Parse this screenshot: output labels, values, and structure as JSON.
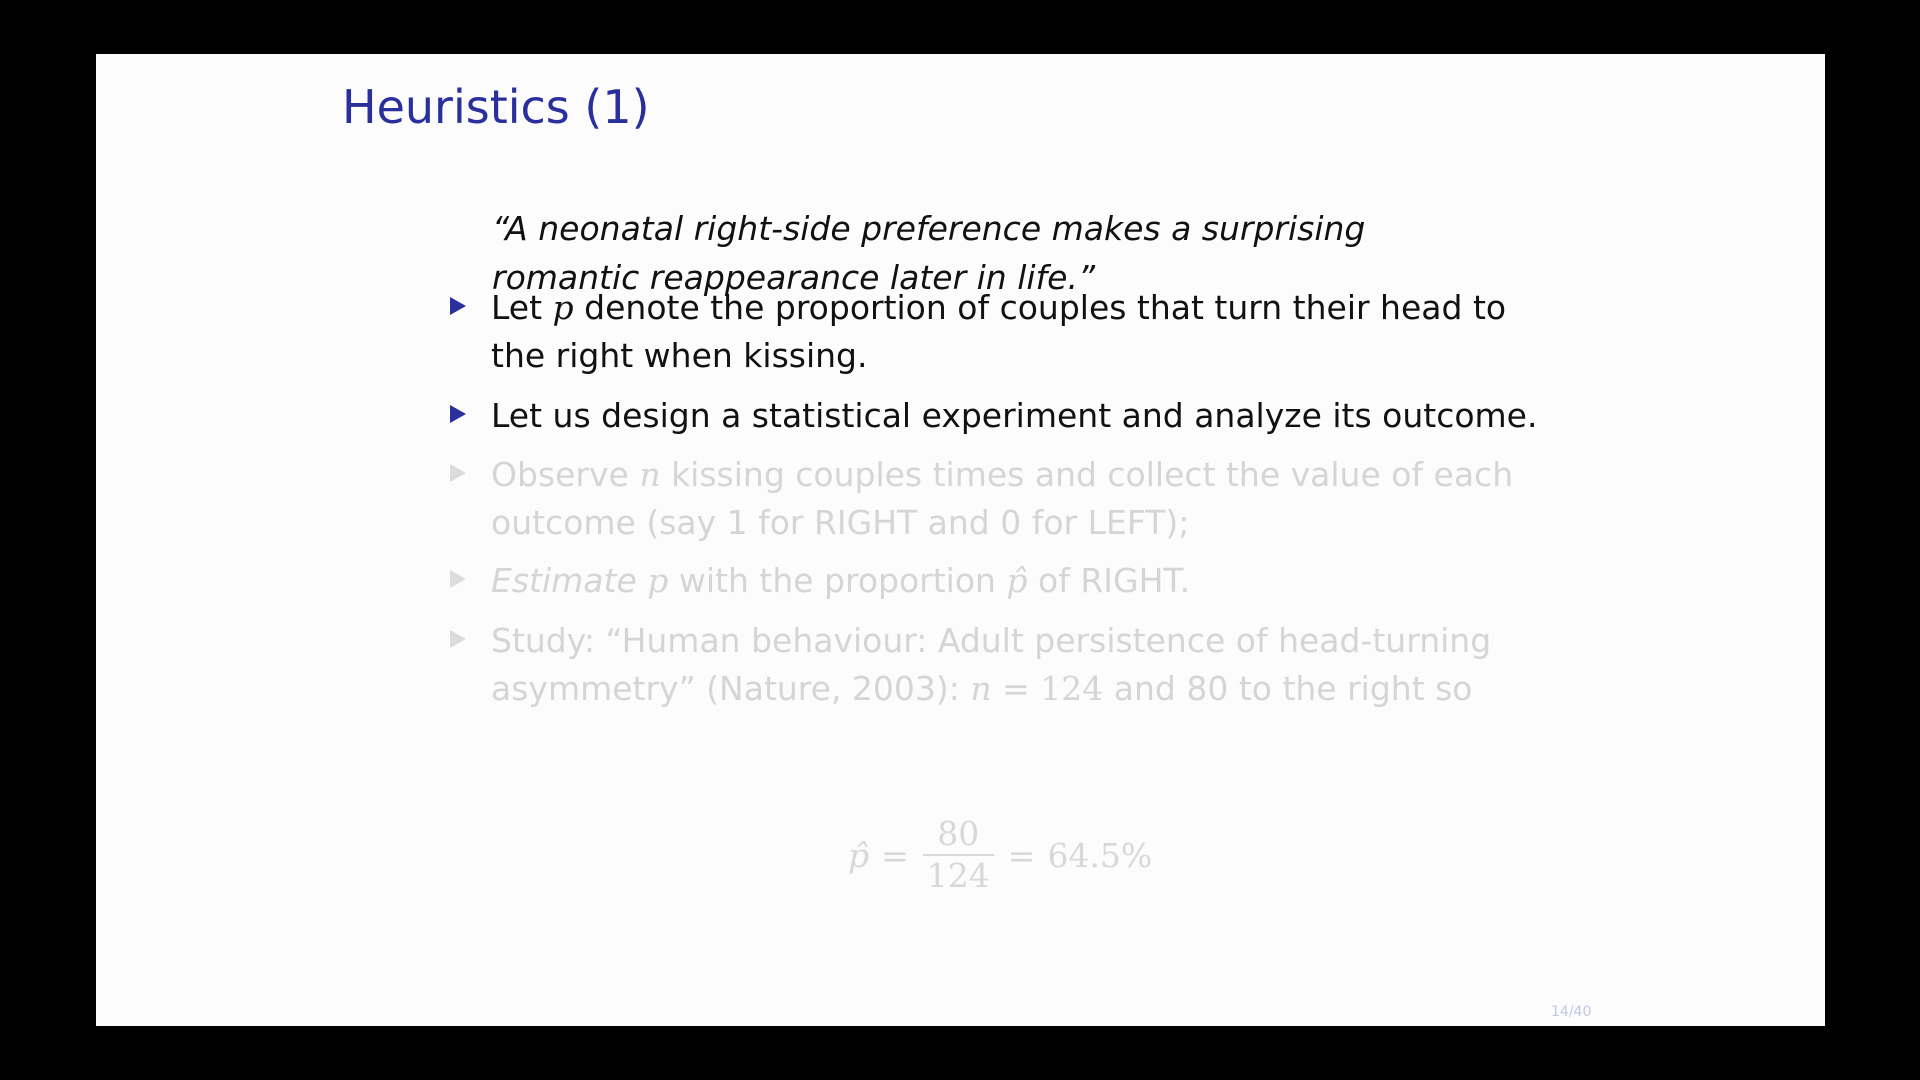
{
  "slide": {
    "title": "Heuristics (1)",
    "quote": {
      "line1": "“A neonatal right-side preference makes a surprising",
      "line2": "romantic reappearance later in life.”"
    },
    "items": [
      {
        "l1_a": "Let ",
        "l1_var": "p",
        "l1_b": " denote the proportion of couples that turn their head to",
        "l2": "the right when kissing."
      },
      {
        "l1": "Let us design a statistical experiment and analyze its outcome."
      },
      {
        "l1_a": "Observe ",
        "l1_var": "n",
        "l1_b": " kissing couples times and collect the value of each",
        "l2": "outcome (say 1 for RIGHT and 0 for LEFT);"
      },
      {
        "l1_em": "Estimate",
        "l1_var": "p",
        "l1_mid": " with the proportion ",
        "l1_var2": "p̂",
        "l1_end": " of RIGHT."
      },
      {
        "l1": "Study: “Human behaviour: Adult persistence of head-turning",
        "l2_a": "asymmetry” (Nature, 2003): ",
        "l2_var": "n",
        "l2_eq": " = 124",
        "l2_b": " and 80 to the right so"
      }
    ],
    "formula": {
      "lhs": "p̂",
      "eq1": "=",
      "numerator": "80",
      "denominator": "124",
      "eq2": "=",
      "result": "64.5%"
    },
    "page_number": "14/40"
  },
  "colors": {
    "title": "#2a2f9c",
    "bullet": "#2a2f9c",
    "text": "#111111",
    "faded_text": "#d5d5d5",
    "slide_background": "#fcfcfc",
    "frame_background": "#000000"
  }
}
